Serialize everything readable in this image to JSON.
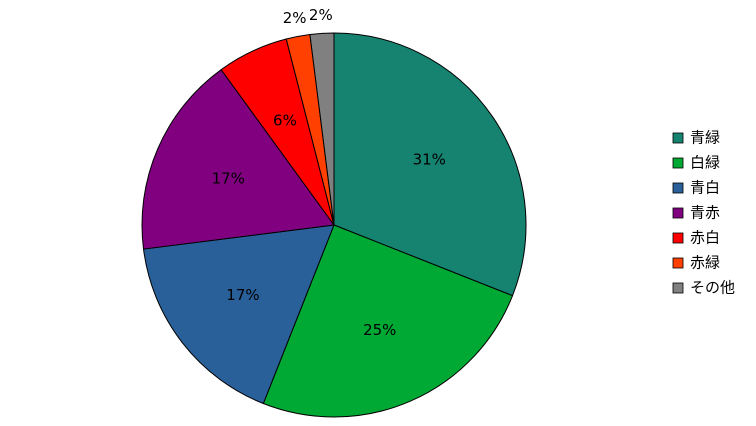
{
  "chart_data": {
    "type": "pie",
    "categories": [
      "青緑",
      "白緑",
      "青白",
      "青赤",
      "赤白",
      "赤緑",
      "その他"
    ],
    "values": [
      31,
      25,
      17,
      17,
      6,
      2,
      2
    ],
    "value_labels": [
      "31%",
      "25%",
      "17%",
      "17%",
      "6%",
      "2%",
      "2%"
    ],
    "colors": [
      "#168270",
      "#00a933",
      "#2a6099",
      "#800080",
      "#ff0000",
      "#ff4000",
      "#808080"
    ],
    "legend": "right"
  }
}
